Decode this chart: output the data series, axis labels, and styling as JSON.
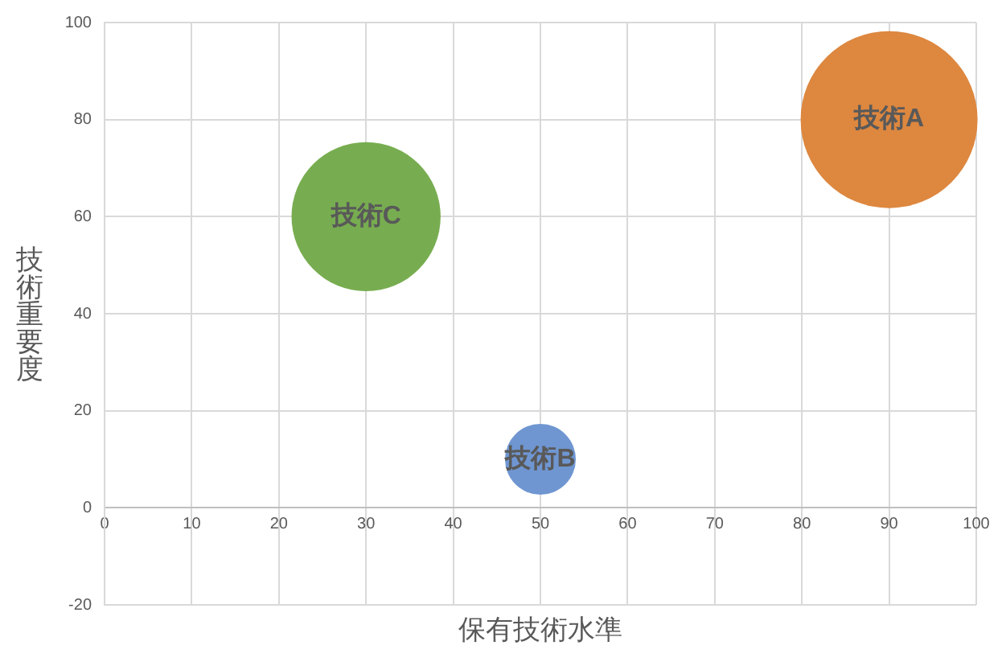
{
  "chart_data": {
    "type": "bubble",
    "xlabel": "保有技術水準",
    "ylabel": "技術重要度",
    "series": [
      {
        "name": "技術A",
        "color": "#dd873f",
        "x": [
          90
        ],
        "values": [
          80
        ],
        "sizes": [
          1
        ]
      },
      {
        "name": "技術B",
        "color": "#6f96d1",
        "x": [
          50
        ],
        "values": [
          10
        ],
        "sizes": [
          0.16
        ]
      },
      {
        "name": "技術C",
        "color": "#77ad50",
        "x": [
          30
        ],
        "values": [
          60
        ],
        "sizes": [
          0.71
        ]
      }
    ],
    "xlim": [
      0,
      100
    ],
    "xticks": [
      0,
      10,
      20,
      30,
      40,
      50,
      60,
      70,
      80,
      90,
      100
    ],
    "ylim": [
      -20,
      100
    ],
    "yticks": [
      -20,
      0,
      20,
      40,
      60,
      80,
      100
    ],
    "grid": true
  }
}
